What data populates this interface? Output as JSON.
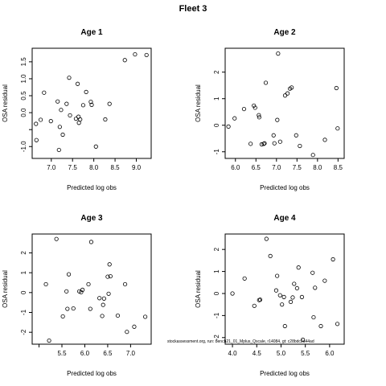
{
  "title": "Fleet 3",
  "footnote": "stockassessment.org, run: bench21_01_Mplus_Qscale, r14084, gt: c28bdc2a44ad",
  "chart_data": [
    {
      "type": "scatter",
      "title": "Age 1",
      "xlabel": "Predicted log obs",
      "ylabel": "OSA residual",
      "xlim": [
        6.55,
        9.35
      ],
      "ylim": [
        -1.35,
        1.9
      ],
      "xticks": [
        7.0,
        7.5,
        8.0,
        8.5,
        9.0
      ],
      "xtick_labels": [
        "7.0",
        "7.5",
        "8.0",
        "8.5",
        "9.0"
      ],
      "yticks": [
        -1.0,
        -0.5,
        0.0,
        0.5,
        1.0,
        1.5
      ],
      "ytick_labels": [
        "-1.0",
        "",
        "0.0",
        "0.5",
        "1.0",
        "1.5"
      ],
      "x": [
        6.64,
        6.65,
        6.75,
        6.83,
        6.99,
        7.15,
        7.18,
        7.2,
        7.23,
        7.27,
        7.36,
        7.42,
        7.44,
        7.58,
        7.62,
        7.64,
        7.65,
        7.68,
        7.75,
        7.82,
        7.93,
        7.95,
        8.05,
        8.27,
        8.37,
        8.73,
        8.97,
        9.24
      ],
      "y": [
        -0.33,
        -0.81,
        -0.21,
        0.59,
        -0.25,
        0.33,
        -1.1,
        -0.42,
        0.08,
        -0.65,
        0.26,
        1.03,
        -0.08,
        -0.18,
        0.85,
        -0.12,
        -0.3,
        -0.2,
        0.22,
        0.61,
        0.32,
        0.23,
        -1.0,
        -0.2,
        0.26,
        1.55,
        1.72,
        1.7
      ]
    },
    {
      "type": "scatter",
      "title": "Age 2",
      "xlabel": "Predicted log obs",
      "ylabel": "OSA residual",
      "xlim": [
        5.75,
        8.65
      ],
      "ylim": [
        -1.25,
        2.9
      ],
      "xticks": [
        6.0,
        6.5,
        7.0,
        7.5,
        8.0,
        8.5
      ],
      "xtick_labels": [
        "6.0",
        "6.5",
        "7.0",
        "7.5",
        "8.0",
        "8.5"
      ],
      "yticks": [
        -1,
        0,
        1,
        2
      ],
      "ytick_labels": [
        "-1",
        "0",
        "1",
        "2"
      ],
      "x": [
        5.83,
        5.98,
        6.21,
        6.37,
        6.45,
        6.48,
        6.57,
        6.58,
        6.64,
        6.69,
        6.71,
        6.74,
        6.93,
        6.95,
        7.02,
        7.04,
        7.09,
        7.21,
        7.27,
        7.33,
        7.37,
        7.48,
        7.57,
        7.89,
        8.18,
        8.46,
        8.49
      ],
      "y": [
        -0.05,
        0.26,
        0.61,
        -0.7,
        0.74,
        0.66,
        0.38,
        0.3,
        -0.72,
        -0.7,
        -0.68,
        1.6,
        -0.38,
        -0.68,
        0.2,
        2.7,
        -0.62,
        1.12,
        1.2,
        1.38,
        1.42,
        -0.38,
        -0.78,
        -1.12,
        -0.55,
        1.4,
        -0.12
      ]
    },
    {
      "type": "scatter",
      "title": "Age 3",
      "xlabel": "Predicted log obs",
      "ylabel": "OSA residual",
      "xlim": [
        4.85,
        7.45
      ],
      "ylim": [
        -2.6,
        2.95
      ],
      "xticks": [
        5.0,
        5.5,
        6.0,
        6.5,
        7.0
      ],
      "xtick_labels": [
        "",
        "5.5",
        "6.0",
        "6.5",
        "7.0"
      ],
      "yticks": [
        -2,
        -1,
        0,
        1,
        2
      ],
      "ytick_labels": [
        "-2",
        "-1",
        "0",
        "1",
        "2"
      ],
      "x": [
        5.15,
        5.22,
        5.38,
        5.52,
        5.6,
        5.62,
        5.65,
        5.75,
        5.88,
        5.92,
        5.95,
        6.08,
        6.12,
        6.14,
        6.32,
        6.38,
        6.4,
        6.42,
        6.5,
        6.52,
        6.54,
        6.56,
        6.72,
        6.88,
        6.92,
        7.08,
        7.32
      ],
      "y": [
        0.42,
        -2.42,
        2.7,
        -1.2,
        0.06,
        -0.82,
        0.92,
        -0.8,
        0.06,
        0.02,
        0.14,
        0.42,
        -0.82,
        2.55,
        -0.28,
        -1.18,
        -0.62,
        -0.3,
        0.8,
        -0.06,
        1.42,
        0.82,
        -1.16,
        0.42,
        -1.98,
        -1.72,
        -1.22
      ]
    },
    {
      "type": "scatter",
      "title": "Age 4",
      "xlabel": "Predicted log obs",
      "ylabel": "OSA residual",
      "xlim": [
        3.85,
        6.3
      ],
      "ylim": [
        -2.3,
        2.7
      ],
      "xticks": [
        4.0,
        4.5,
        5.0,
        5.5,
        6.0
      ],
      "xtick_labels": [
        "4.0",
        "4.5",
        "5.0",
        "5.5",
        "6.0"
      ],
      "yticks": [
        -2,
        -1,
        0,
        1,
        2
      ],
      "ytick_labels": [
        "-2",
        "-1",
        "0",
        "1",
        "2"
      ],
      "x": [
        4.0,
        4.25,
        4.45,
        4.55,
        4.57,
        4.7,
        4.78,
        4.9,
        4.92,
        4.98,
        5.02,
        5.06,
        5.08,
        5.2,
        5.24,
        5.27,
        5.33,
        5.36,
        5.43,
        5.45,
        5.65,
        5.67,
        5.7,
        5.82,
        5.9,
        6.07,
        6.16
      ],
      "y": [
        0.0,
        0.68,
        -0.56,
        -0.3,
        -0.28,
        2.48,
        1.7,
        0.14,
        0.8,
        -0.08,
        -0.5,
        -0.16,
        -1.48,
        -0.38,
        -0.18,
        0.44,
        0.24,
        1.18,
        -0.16,
        -2.1,
        0.94,
        -1.08,
        0.26,
        -1.48,
        0.58,
        1.55,
        -1.38
      ]
    }
  ]
}
